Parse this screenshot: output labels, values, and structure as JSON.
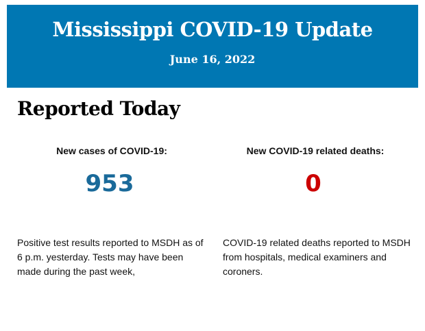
{
  "header": {
    "title": "Mississippi COVID-19 Update",
    "date": "June 16, 2022"
  },
  "section_title": "Reported Today",
  "colors": {
    "banner": "#0077b3",
    "cases": "#1a6a9a",
    "deaths": "#cc0000"
  },
  "cases": {
    "label": "New cases of COVID-19:",
    "value": "953",
    "description": "Positive test results reported to MSDH as of 6 p.m. yesterday. Tests may have been made during the past week,"
  },
  "deaths": {
    "label": "New COVID-19 related deaths:",
    "value": "0",
    "description": "COVID-19 related deaths reported to MSDH from hospitals, medical examiners and coroners."
  }
}
